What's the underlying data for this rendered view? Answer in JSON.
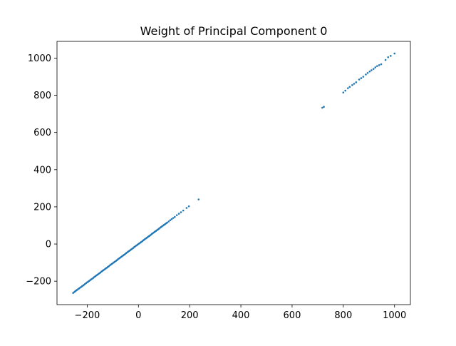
{
  "chart_data": {
    "type": "scatter",
    "title": "Weight of Principal Component 0",
    "xlabel": "",
    "ylabel": "",
    "xlim": [
      -318,
      1062
    ],
    "ylim": [
      -326,
      1090
    ],
    "xticks": [
      -200,
      0,
      200,
      400,
      600,
      800,
      1000
    ],
    "yticks": [
      -200,
      0,
      200,
      400,
      600,
      800,
      1000
    ],
    "xtick_labels": [
      "−200",
      "0",
      "200",
      "400",
      "600",
      "800",
      "1000"
    ],
    "ytick_labels": [
      "−200",
      "0",
      "200",
      "400",
      "600",
      "800",
      "1000"
    ],
    "grid": false,
    "legend": "none",
    "marker_color": "#1f77b4",
    "series": [
      {
        "points": [
          [
            -255,
            -263
          ],
          [
            -250,
            -258
          ],
          [
            -247,
            -254
          ],
          [
            -243,
            -250
          ],
          [
            -240,
            -247
          ],
          [
            -236,
            -243
          ],
          [
            -232,
            -239
          ],
          [
            -228,
            -235
          ],
          [
            -224,
            -231
          ],
          [
            -220,
            -227
          ],
          [
            -216,
            -223
          ],
          [
            -212,
            -219
          ],
          [
            -208,
            -214
          ],
          [
            -204,
            -210
          ],
          [
            -200,
            -206
          ],
          [
            -196,
            -202
          ],
          [
            -192,
            -198
          ],
          [
            -188,
            -194
          ],
          [
            -184,
            -190
          ],
          [
            -180,
            -186
          ],
          [
            -176,
            -182
          ],
          [
            -172,
            -177
          ],
          [
            -168,
            -173
          ],
          [
            -164,
            -169
          ],
          [
            -160,
            -165
          ],
          [
            -156,
            -161
          ],
          [
            -152,
            -157
          ],
          [
            -148,
            -153
          ],
          [
            -144,
            -148
          ],
          [
            -140,
            -144
          ],
          [
            -136,
            -140
          ],
          [
            -132,
            -136
          ],
          [
            -128,
            -132
          ],
          [
            -124,
            -128
          ],
          [
            -120,
            -124
          ],
          [
            -116,
            -120
          ],
          [
            -112,
            -115
          ],
          [
            -108,
            -111
          ],
          [
            -104,
            -107
          ],
          [
            -100,
            -103
          ],
          [
            -96,
            -99
          ],
          [
            -92,
            -95
          ],
          [
            -88,
            -91
          ],
          [
            -84,
            -87
          ],
          [
            -80,
            -82
          ],
          [
            -76,
            -78
          ],
          [
            -72,
            -74
          ],
          [
            -68,
            -70
          ],
          [
            -64,
            -66
          ],
          [
            -60,
            -62
          ],
          [
            -56,
            -58
          ],
          [
            -52,
            -54
          ],
          [
            -48,
            -49
          ],
          [
            -44,
            -45
          ],
          [
            -40,
            -41
          ],
          [
            -36,
            -37
          ],
          [
            -32,
            -33
          ],
          [
            -28,
            -29
          ],
          [
            -24,
            -25
          ],
          [
            -20,
            -21
          ],
          [
            -16,
            -16
          ],
          [
            -12,
            -12
          ],
          [
            -8,
            -8
          ],
          [
            -4,
            -4
          ],
          [
            0,
            0
          ],
          [
            4,
            4
          ],
          [
            8,
            8
          ],
          [
            12,
            12
          ],
          [
            16,
            16
          ],
          [
            20,
            21
          ],
          [
            24,
            25
          ],
          [
            28,
            29
          ],
          [
            32,
            33
          ],
          [
            36,
            37
          ],
          [
            40,
            41
          ],
          [
            44,
            45
          ],
          [
            48,
            49
          ],
          [
            52,
            54
          ],
          [
            56,
            58
          ],
          [
            60,
            62
          ],
          [
            64,
            66
          ],
          [
            68,
            70
          ],
          [
            72,
            74
          ],
          [
            76,
            78
          ],
          [
            80,
            82
          ],
          [
            84,
            87
          ],
          [
            88,
            91
          ],
          [
            92,
            95
          ],
          [
            96,
            99
          ],
          [
            100,
            103
          ],
          [
            104,
            107
          ],
          [
            108,
            111
          ],
          [
            112,
            115
          ],
          [
            118,
            121
          ],
          [
            124,
            128
          ],
          [
            130,
            134
          ],
          [
            136,
            140
          ],
          [
            142,
            146
          ],
          [
            150,
            155
          ],
          [
            158,
            163
          ],
          [
            166,
            171
          ],
          [
            175,
            180
          ],
          [
            188,
            194
          ],
          [
            197,
            203
          ],
          [
            235,
            240
          ],
          [
            718,
            733
          ],
          [
            724,
            738
          ],
          [
            800,
            815
          ],
          [
            808,
            825
          ],
          [
            818,
            838
          ],
          [
            825,
            845
          ],
          [
            835,
            855
          ],
          [
            842,
            862
          ],
          [
            850,
            870
          ],
          [
            862,
            885
          ],
          [
            870,
            892
          ],
          [
            878,
            900
          ],
          [
            888,
            912
          ],
          [
            895,
            920
          ],
          [
            903,
            928
          ],
          [
            910,
            935
          ],
          [
            918,
            942
          ],
          [
            925,
            950
          ],
          [
            932,
            957
          ],
          [
            940,
            962
          ],
          [
            948,
            967
          ],
          [
            965,
            990
          ],
          [
            975,
            1005
          ],
          [
            985,
            1012
          ],
          [
            1000,
            1025
          ]
        ]
      }
    ]
  }
}
